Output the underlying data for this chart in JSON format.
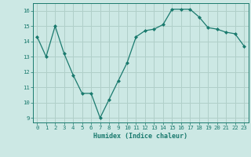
{
  "x": [
    0,
    1,
    2,
    3,
    4,
    5,
    6,
    7,
    8,
    9,
    10,
    11,
    12,
    13,
    14,
    15,
    16,
    17,
    18,
    19,
    20,
    21,
    22,
    23
  ],
  "y": [
    14.3,
    13.0,
    15.0,
    13.2,
    11.8,
    10.6,
    10.6,
    9.0,
    10.2,
    11.4,
    12.6,
    14.3,
    14.7,
    14.8,
    15.1,
    16.1,
    16.1,
    16.1,
    15.6,
    14.9,
    14.8,
    14.6,
    14.5,
    13.7
  ],
  "line_color": "#1a7a6e",
  "marker": "D",
  "marker_size": 2.0,
  "bg_color": "#cce8e4",
  "grid_color": "#b0cfc9",
  "tick_color": "#1a7a6e",
  "xlabel": "Humidex (Indice chaleur)",
  "ylim": [
    8.7,
    16.5
  ],
  "xlim": [
    -0.5,
    23.5
  ],
  "yticks": [
    9,
    10,
    11,
    12,
    13,
    14,
    15,
    16
  ],
  "xticks": [
    0,
    1,
    2,
    3,
    4,
    5,
    6,
    7,
    8,
    9,
    10,
    11,
    12,
    13,
    14,
    15,
    16,
    17,
    18,
    19,
    20,
    21,
    22,
    23
  ],
  "font_family": "monospace",
  "xlabel_fontsize": 6.0,
  "tick_fontsize": 5.2
}
